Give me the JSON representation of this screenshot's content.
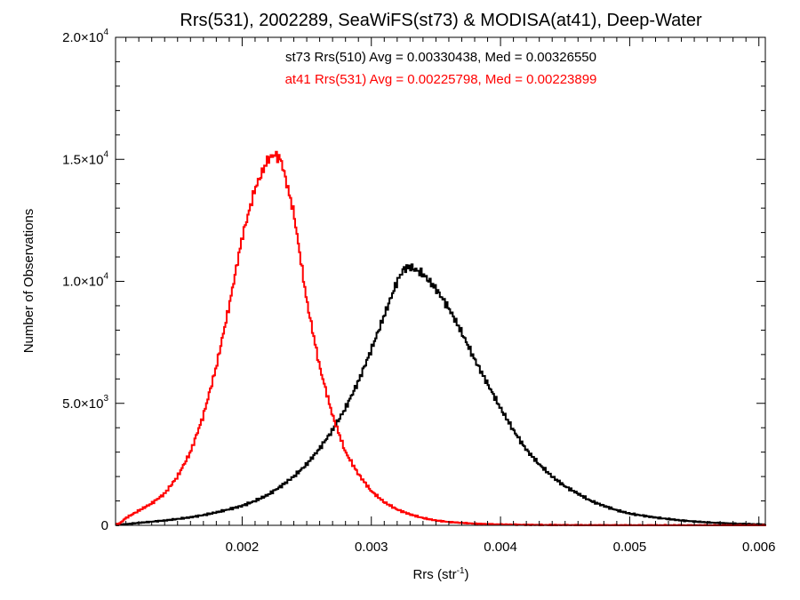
{
  "chart_data": {
    "type": "line",
    "title": "Rrs(531), 2002289, SeaWiFS(st73) & MODISA(at41), Deep-Water",
    "xlabel": {
      "base": "Rrs (str",
      "sup": "-1",
      "end": ")"
    },
    "ylabel": "Number of Observations",
    "xlim": [
      0.00102,
      0.00605
    ],
    "ylim": [
      0,
      20000
    ],
    "grid": false,
    "x_ticks": [
      {
        "value": 0.002,
        "label": "0.002"
      },
      {
        "value": 0.003,
        "label": "0.003"
      },
      {
        "value": 0.004,
        "label": "0.004"
      },
      {
        "value": 0.005,
        "label": "0.005"
      },
      {
        "value": 0.006,
        "label": "0.006"
      }
    ],
    "y_ticks": [
      {
        "value": 0,
        "mant": "0",
        "exp": ""
      },
      {
        "value": 5000,
        "mant": "5.0×10",
        "exp": "3"
      },
      {
        "value": 10000,
        "mant": "1.0×10",
        "exp": "4"
      },
      {
        "value": 15000,
        "mant": "1.5×10",
        "exp": "4"
      },
      {
        "value": 20000,
        "mant": "2.0×10",
        "exp": "4"
      }
    ],
    "annotations": [
      {
        "text": "st73 Rrs(510) Avg = 0.00330438, Med = 0.00326550",
        "color": "#000000"
      },
      {
        "text": "at41 Rrs(531) Avg = 0.00225798, Med = 0.00223899",
        "color": "#ff0000"
      }
    ],
    "series": [
      {
        "color": "#000000",
        "x": [
          0.00105,
          0.0011,
          0.0012,
          0.0013,
          0.0014,
          0.0015,
          0.0016,
          0.0017,
          0.0018,
          0.0019,
          0.002,
          0.0021,
          0.0022,
          0.0023,
          0.0024,
          0.0025,
          0.0026,
          0.0027,
          0.0028,
          0.0029,
          0.003,
          0.0031,
          0.0032,
          0.00325,
          0.0033,
          0.0034,
          0.0035,
          0.0036,
          0.0037,
          0.0038,
          0.0039,
          0.004,
          0.0041,
          0.0042,
          0.0043,
          0.0044,
          0.0045,
          0.0046,
          0.0047,
          0.0048,
          0.0049,
          0.005,
          0.0052,
          0.0054,
          0.0056,
          0.0058,
          0.006
        ],
        "y": [
          20,
          50,
          100,
          150,
          200,
          260,
          330,
          420,
          530,
          660,
          800,
          1000,
          1250,
          1600,
          2000,
          2500,
          3150,
          3900,
          4800,
          5900,
          7200,
          8600,
          10000,
          10500,
          10600,
          10300,
          9700,
          8900,
          7900,
          6800,
          5800,
          4800,
          3900,
          3100,
          2500,
          2000,
          1600,
          1300,
          1000,
          800,
          620,
          480,
          320,
          200,
          120,
          70,
          40
        ]
      },
      {
        "color": "#ff0000",
        "x": [
          0.00105,
          0.0011,
          0.0012,
          0.0013,
          0.0014,
          0.0015,
          0.0016,
          0.0017,
          0.0018,
          0.0019,
          0.002,
          0.0021,
          0.0022,
          0.00225,
          0.0023,
          0.0024,
          0.0025,
          0.0026,
          0.0027,
          0.0028,
          0.0029,
          0.003,
          0.0031,
          0.0032,
          0.0033,
          0.0034,
          0.0035,
          0.0036,
          0.0037,
          0.0038,
          0.0039,
          0.004,
          0.0042,
          0.0044,
          0.0046,
          0.0048,
          0.005,
          0.0052,
          0.0055,
          0.0058,
          0.006
        ],
        "y": [
          60,
          300,
          600,
          900,
          1300,
          2000,
          3000,
          4500,
          6500,
          9000,
          11800,
          13800,
          15000,
          15200,
          15000,
          12800,
          9200,
          6500,
          4500,
          3000,
          2100,
          1400,
          950,
          650,
          450,
          300,
          200,
          140,
          100,
          70,
          50,
          35,
          20,
          12,
          8,
          5,
          3,
          2,
          1,
          0,
          0
        ]
      }
    ]
  }
}
